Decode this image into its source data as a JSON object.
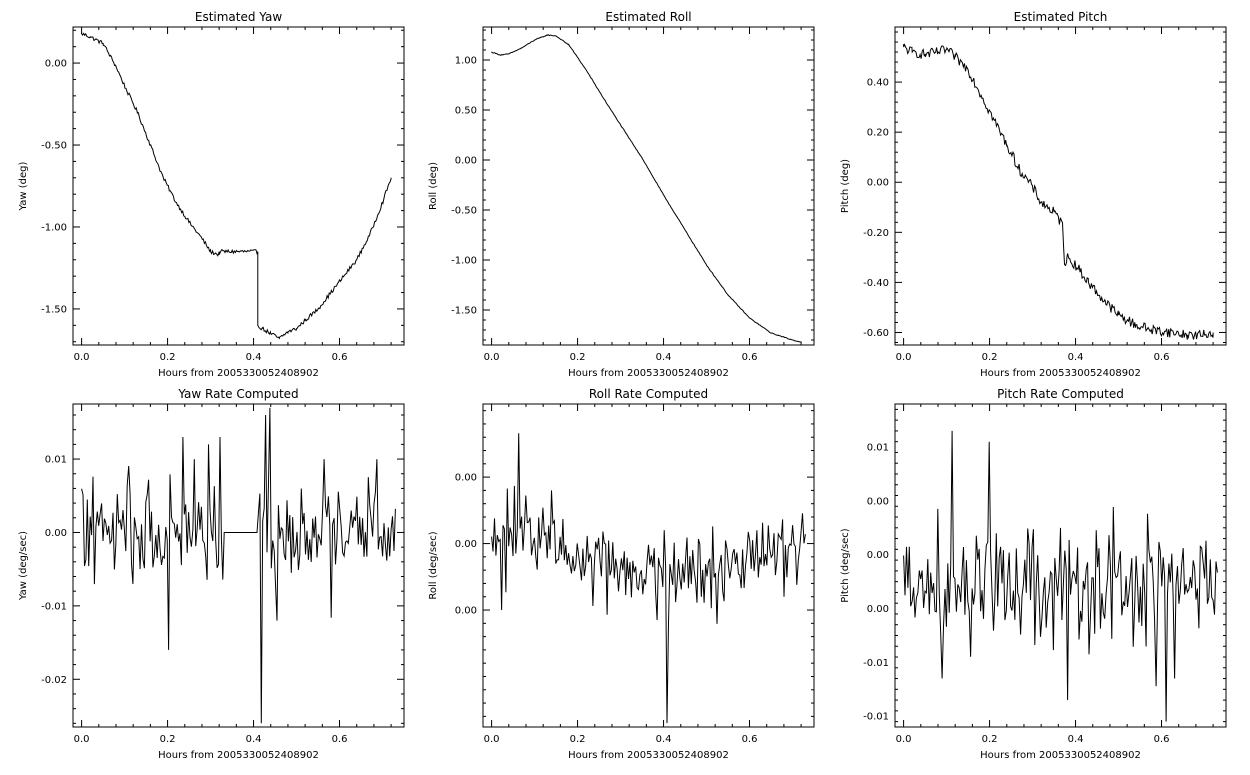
{
  "chart_data": [
    {
      "type": "line",
      "title": "Estimated Yaw",
      "xlabel": "Hours from 2005330052408902",
      "ylabel": "Yaw (deg)",
      "xlim": [
        -0.02,
        0.75
      ],
      "ylim": [
        -1.72,
        0.22
      ],
      "xticks": [
        "0.0",
        "0.2",
        "0.4",
        "0.6"
      ],
      "xtick_values": [
        0.0,
        0.2,
        0.4,
        0.6
      ],
      "yticks": [
        "0.00",
        "-0.50",
        "-1.00",
        "-1.50"
      ],
      "ytick_values": [
        0.0,
        -0.5,
        -1.0,
        -1.5
      ],
      "grid": false,
      "noise": 0.012,
      "x": [
        0.0,
        0.02,
        0.05,
        0.08,
        0.1,
        0.13,
        0.16,
        0.19,
        0.22,
        0.25,
        0.28,
        0.3,
        0.32,
        0.32,
        0.41,
        0.41,
        0.42,
        0.44,
        0.46,
        0.48,
        0.5,
        0.52,
        0.55,
        0.58,
        0.61,
        0.64,
        0.67,
        0.7,
        0.72
      ],
      "y": [
        0.18,
        0.16,
        0.12,
        -0.02,
        -0.14,
        -0.3,
        -0.5,
        -0.7,
        -0.85,
        -0.97,
        -1.07,
        -1.15,
        -1.17,
        -1.15,
        -1.15,
        -1.6,
        -1.62,
        -1.65,
        -1.68,
        -1.64,
        -1.62,
        -1.57,
        -1.5,
        -1.4,
        -1.3,
        -1.2,
        -1.05,
        -0.85,
        -0.7
      ]
    },
    {
      "type": "line",
      "title": "Estimated Roll",
      "xlabel": "Hours from 2005330052408902",
      "ylabel": "Roll (deg)",
      "xlim": [
        -0.02,
        0.75
      ],
      "ylim": [
        -1.85,
        1.33
      ],
      "xticks": [
        "0.0",
        "0.2",
        "0.4",
        "0.6"
      ],
      "xtick_values": [
        0.0,
        0.2,
        0.4,
        0.6
      ],
      "yticks": [
        "1.00",
        "0.50",
        "0.00",
        "-0.50",
        "-1.00",
        "-1.50"
      ],
      "ytick_values": [
        1.0,
        0.5,
        0.0,
        -0.5,
        -1.0,
        -1.5
      ],
      "grid": false,
      "noise": 0.004,
      "x": [
        0.0,
        0.02,
        0.04,
        0.07,
        0.1,
        0.13,
        0.15,
        0.18,
        0.22,
        0.26,
        0.3,
        0.35,
        0.4,
        0.45,
        0.5,
        0.55,
        0.6,
        0.65,
        0.7,
        0.72
      ],
      "y": [
        1.08,
        1.05,
        1.06,
        1.12,
        1.2,
        1.25,
        1.24,
        1.15,
        0.9,
        0.62,
        0.35,
        0.02,
        -0.35,
        -0.7,
        -1.05,
        -1.35,
        -1.58,
        -1.73,
        -1.8,
        -1.82
      ]
    },
    {
      "type": "line",
      "title": "Estimated Pitch",
      "xlabel": "Hours from 2005330052408902",
      "ylabel": "Pitch (deg)",
      "xlim": [
        -0.02,
        0.75
      ],
      "ylim": [
        -0.65,
        0.62
      ],
      "xticks": [
        "0.0",
        "0.2",
        "0.4",
        "0.6"
      ],
      "xtick_values": [
        0.0,
        0.2,
        0.4,
        0.6
      ],
      "yticks": [
        "0.40",
        "0.20",
        "0.00",
        "-0.20",
        "-0.40",
        "-0.60"
      ],
      "ytick_values": [
        0.4,
        0.2,
        0.0,
        -0.2,
        -0.4,
        -0.6
      ],
      "grid": false,
      "noise": 0.02,
      "x": [
        0.0,
        0.02,
        0.05,
        0.08,
        0.1,
        0.12,
        0.15,
        0.18,
        0.21,
        0.24,
        0.27,
        0.3,
        0.32,
        0.35,
        0.37,
        0.375,
        0.38,
        0.4,
        0.43,
        0.47,
        0.5,
        0.54,
        0.58,
        0.62,
        0.66,
        0.7,
        0.72
      ],
      "y": [
        0.54,
        0.52,
        0.51,
        0.52,
        0.53,
        0.5,
        0.45,
        0.35,
        0.25,
        0.15,
        0.05,
        -0.02,
        -0.08,
        -0.12,
        -0.17,
        -0.33,
        -0.3,
        -0.33,
        -0.4,
        -0.48,
        -0.53,
        -0.57,
        -0.59,
        -0.6,
        -0.61,
        -0.61,
        -0.6
      ]
    },
    {
      "type": "line",
      "title": "Yaw Rate Computed",
      "xlabel": "Hours from 2005330052408902",
      "ylabel": "Yaw (deg/sec)",
      "xlim": [
        -0.02,
        0.75
      ],
      "ylim": [
        -0.0265,
        0.0175
      ],
      "xticks": [
        "0.0",
        "0.2",
        "0.4",
        "0.6"
      ],
      "xtick_values": [
        0.0,
        0.2,
        0.4,
        0.6
      ],
      "yticks": [
        "0.01",
        "0.00",
        "-0.01",
        "-0.02"
      ],
      "ytick_values": [
        0.01,
        0.0,
        -0.01,
        -0.02
      ],
      "grid": false,
      "noise": 0.004,
      "noise_n": 220,
      "gap": [
        0.33,
        0.41
      ],
      "spikes": [
        [
          0.204,
          -0.016
        ],
        [
          0.237,
          0.013
        ],
        [
          0.263,
          0.01
        ],
        [
          0.294,
          0.012
        ],
        [
          0.322,
          0.013
        ],
        [
          0.418,
          -0.026
        ],
        [
          0.427,
          0.016
        ],
        [
          0.438,
          0.017
        ],
        [
          0.455,
          -0.012
        ],
        [
          0.565,
          0.01
        ],
        [
          0.688,
          0.01
        ]
      ]
    },
    {
      "type": "line",
      "title": "Roll Rate Computed",
      "xlabel": "Hours from 2005330052408902",
      "ylabel": "Roll (deg/sec)",
      "xlim": [
        -0.02,
        0.75
      ],
      "ylim": [
        -0.0138,
        0.0105
      ],
      "xticks": [
        "0.0",
        "0.2",
        "0.4",
        "0.6"
      ],
      "xtick_values": [
        0.0,
        0.2,
        0.4,
        0.6
      ],
      "yticks": [
        "0.00",
        "0.00",
        "0.00"
      ],
      "ytick_values": [
        0.005,
        0.0,
        -0.005
      ],
      "grid": false,
      "noise": 0.0018,
      "noise_n": 220,
      "trend": [
        [
          0.0,
          0.0
        ],
        [
          0.1,
          0.0005
        ],
        [
          0.3,
          -0.0015
        ],
        [
          0.45,
          -0.002
        ],
        [
          0.6,
          -0.0012
        ],
        [
          0.72,
          -0.0002
        ]
      ],
      "spikes": [
        [
          0.064,
          0.0083
        ],
        [
          0.024,
          -0.005
        ],
        [
          0.407,
          -0.0135
        ],
        [
          0.14,
          0.004
        ],
        [
          0.68,
          -0.004
        ]
      ]
    },
    {
      "type": "line",
      "title": "Pitch Rate Computed",
      "xlabel": "Hours from 2005330052408902",
      "ylabel": "Pitch (deg/sec)",
      "xlim": [
        -0.02,
        0.75
      ],
      "ylim": [
        -0.0135,
        0.0165
      ],
      "xticks": [
        "0.0",
        "0.2",
        "0.4",
        "0.6"
      ],
      "xtick_values": [
        0.0,
        0.2,
        0.4,
        0.6
      ],
      "yticks": [
        "0.01",
        "0.00",
        "0.00",
        "0.00",
        "-0.01",
        "-0.01"
      ],
      "ytick_values": [
        0.0125,
        0.0075,
        0.0025,
        -0.0025,
        -0.0075,
        -0.0125
      ],
      "grid": false,
      "noise": 0.0035,
      "noise_n": 220,
      "spikes": [
        [
          0.088,
          0.015
        ],
        [
          0.09,
          -0.009
        ],
        [
          0.112,
          0.014
        ],
        [
          0.38,
          -0.011
        ],
        [
          0.61,
          -0.013
        ],
        [
          0.632,
          -0.009
        ],
        [
          0.2,
          0.013
        ],
        [
          0.74,
          0.012
        ]
      ]
    }
  ]
}
